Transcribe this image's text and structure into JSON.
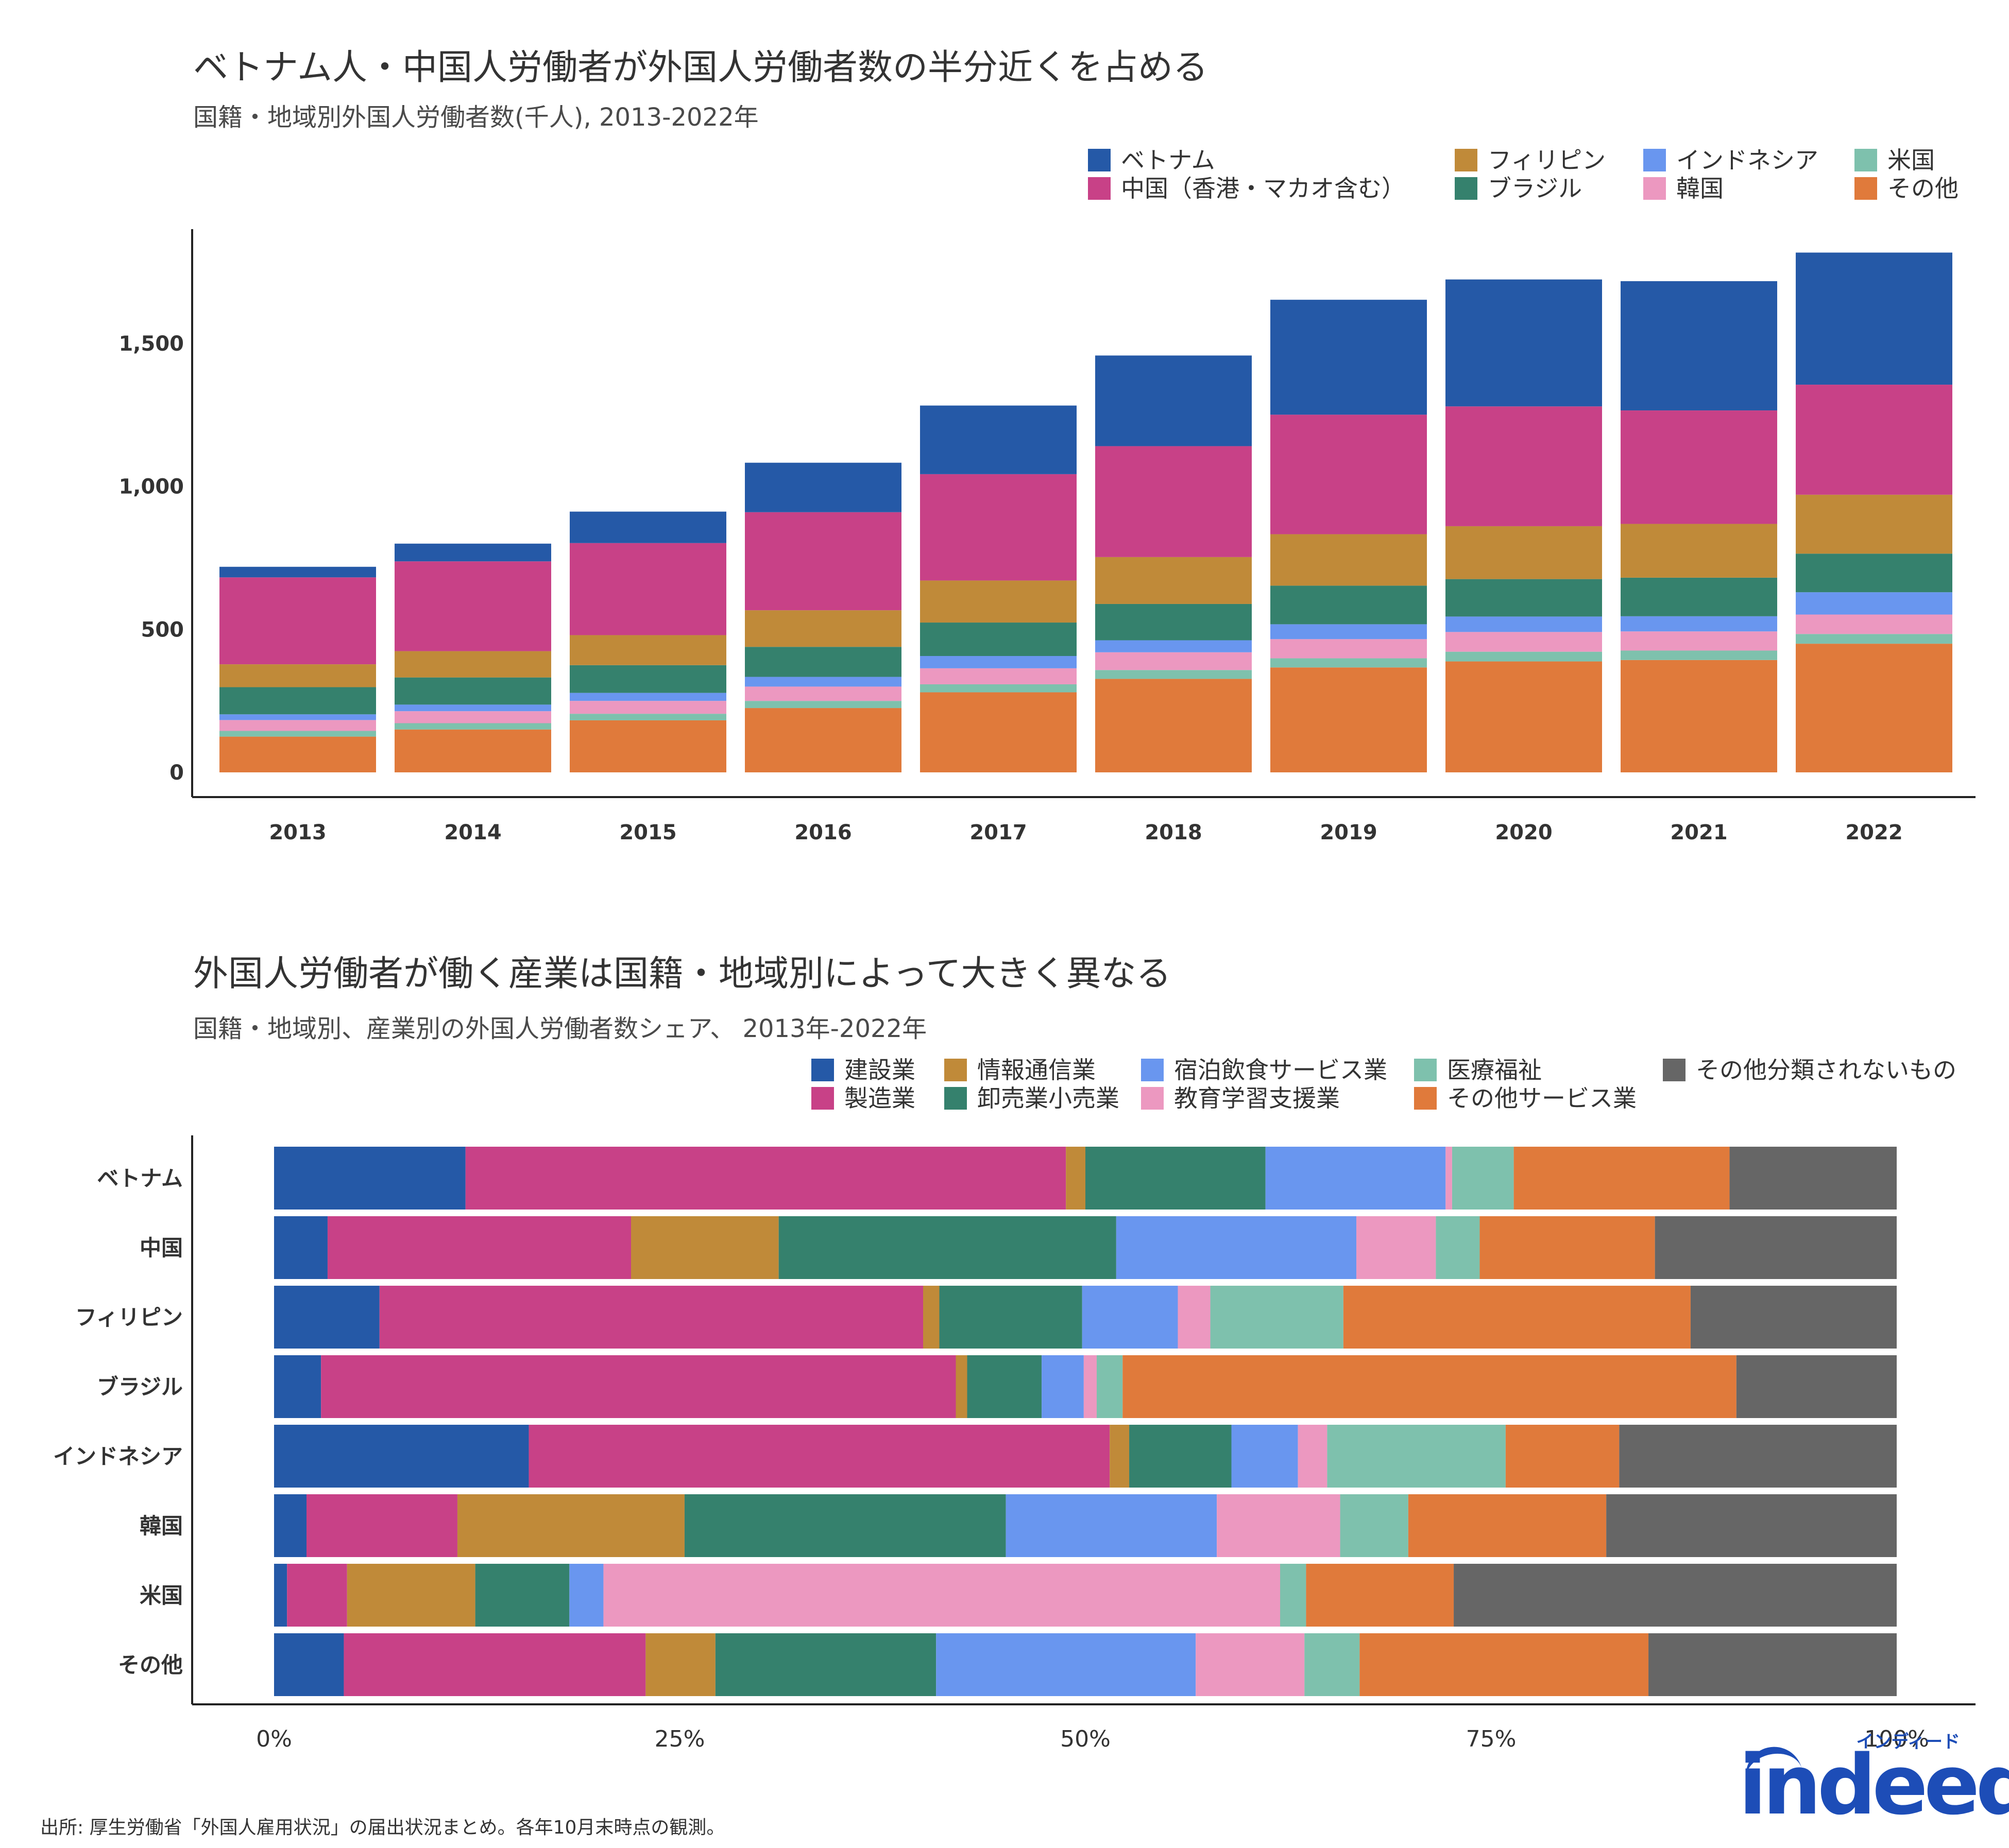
{
  "chart_data": [
    {
      "type": "bar",
      "stacked": true,
      "title": "ベトナム人・中国人労働者が外国人労働者数の半分近くを占める",
      "subtitle": "国籍・地域別外国人労働者数(千人), 2013-2022年",
      "xlabel": "",
      "ylabel": "",
      "ylim": [
        0,
        1900
      ],
      "yticks": [
        0,
        500,
        1000,
        1500
      ],
      "ytick_labels": [
        "0",
        "500",
        "1,000",
        "1,500"
      ],
      "grid": false,
      "legend_position": "top-right",
      "categories": [
        "2013",
        "2014",
        "2015",
        "2016",
        "2017",
        "2018",
        "2019",
        "2020",
        "2021",
        "2022"
      ],
      "series": [
        {
          "name": "その他",
          "color": "#e07a3b",
          "values": [
            125,
            150,
            182,
            225,
            280,
            327,
            367,
            388,
            393,
            450
          ]
        },
        {
          "name": "米国",
          "color": "#7ec1ad",
          "values": [
            20,
            22,
            23,
            25,
            28,
            31,
            32,
            34,
            33,
            34
          ]
        },
        {
          "name": "韓国",
          "color": "#ec98c0",
          "values": [
            38,
            42,
            45,
            50,
            56,
            62,
            67,
            69,
            67,
            68
          ]
        },
        {
          "name": "インドネシア",
          "color": "#6996ef",
          "values": [
            20,
            23,
            28,
            34,
            43,
            42,
            52,
            54,
            53,
            78
          ]
        },
        {
          "name": "ブラジル",
          "color": "#35816d",
          "values": [
            95,
            95,
            97,
            105,
            117,
            127,
            135,
            131,
            135,
            135
          ]
        },
        {
          "name": "フィリピン",
          "color": "#c08a39",
          "values": [
            80,
            92,
            105,
            128,
            147,
            164,
            180,
            185,
            188,
            206
          ]
        },
        {
          "name": "中国（香港・マカオ含む）",
          "color": "#c84187",
          "values": [
            304,
            314,
            322,
            343,
            372,
            388,
            418,
            419,
            397,
            385
          ]
        },
        {
          "name": "ベトナム",
          "color": "#2559a7",
          "values": [
            37,
            62,
            110,
            173,
            240,
            317,
            402,
            444,
            452,
            462
          ]
        }
      ],
      "legend": {
        "entries": [
          "ベトナム",
          "フィリピン",
          "インドネシア",
          "米国",
          "中国（香港・マカオ含む）",
          "ブラジル",
          "韓国",
          "その他"
        ],
        "colors": [
          "#2559a7",
          "#c08a39",
          "#6996ef",
          "#7ec1ad",
          "#c84187",
          "#35816d",
          "#ec98c0",
          "#e07a3b"
        ]
      }
    },
    {
      "type": "bar",
      "orientation": "horizontal",
      "stacked": "percent",
      "title": "外国人労働者が働く産業は国籍・地域別によって大きく異なる",
      "subtitle": "国籍・地域別、産業別の外国人労働者数シェア、 2013年-2022年",
      "xlabel": "",
      "ylabel": "",
      "xlim": [
        0,
        100
      ],
      "xticks": [
        0,
        25,
        50,
        75,
        100
      ],
      "xtick_labels": [
        "0%",
        "25%",
        "50%",
        "75%",
        "100%"
      ],
      "grid": false,
      "legend_position": "top-right",
      "categories": [
        "ベトナム",
        "中国",
        "フィリピン",
        "ブラジル",
        "インドネシア",
        "韓国",
        "米国",
        "その他"
      ],
      "series": [
        {
          "name": "建設業",
          "color": "#2559a7",
          "values": [
            11.8,
            3.3,
            6.5,
            2.9,
            15.7,
            2.0,
            0.8,
            4.3
          ]
        },
        {
          "name": "製造業",
          "color": "#c84187",
          "values": [
            37.0,
            18.7,
            33.5,
            39.2,
            35.8,
            9.3,
            3.7,
            18.6
          ]
        },
        {
          "name": "情報通信業",
          "color": "#c08a39",
          "values": [
            1.2,
            9.1,
            1.0,
            0.7,
            1.2,
            14.0,
            7.9,
            4.3
          ]
        },
        {
          "name": "卸売業小売業",
          "color": "#35816d",
          "values": [
            11.1,
            20.8,
            8.8,
            4.6,
            6.3,
            19.8,
            5.8,
            13.6
          ]
        },
        {
          "name": "宿泊飲食サービス業",
          "color": "#6996ef",
          "values": [
            11.1,
            14.8,
            5.9,
            2.6,
            4.1,
            13.0,
            2.1,
            16.0
          ]
        },
        {
          "name": "教育学習支援業",
          "color": "#ec98c0",
          "values": [
            0.4,
            4.9,
            2.0,
            0.8,
            1.8,
            7.6,
            41.7,
            6.7
          ]
        },
        {
          "name": "医療福祉",
          "color": "#7ec1ad",
          "values": [
            3.8,
            2.7,
            8.2,
            1.6,
            11.0,
            4.2,
            1.6,
            3.4
          ]
        },
        {
          "name": "その他サービス業",
          "color": "#e07a3b",
          "values": [
            13.3,
            10.8,
            21.4,
            37.9,
            7.0,
            12.2,
            9.1,
            17.8
          ]
        },
        {
          "name": "その他分類されないもの",
          "color": "#666666",
          "values": [
            10.3,
            14.9,
            12.7,
            9.9,
            17.1,
            17.9,
            27.3,
            15.3
          ]
        }
      ],
      "legend": {
        "entries": [
          "建設業",
          "情報通信業",
          "宿泊飲食サービス業",
          "医療福祉",
          "その他分類されないもの",
          "製造業",
          "卸売業小売業",
          "教育学習支援業",
          "その他サービス業"
        ],
        "colors": [
          "#2559a7",
          "#c08a39",
          "#6996ef",
          "#7ec1ad",
          "#666666",
          "#c84187",
          "#35816d",
          "#ec98c0",
          "#e07a3b"
        ]
      }
    }
  ],
  "footer": {
    "source": "出所: 厚生労働省「外国人雇用状況」の届出状況まとめ。各年10月末時点の観測。",
    "logo_kana": "インディード",
    "logo_word": "indeed"
  }
}
